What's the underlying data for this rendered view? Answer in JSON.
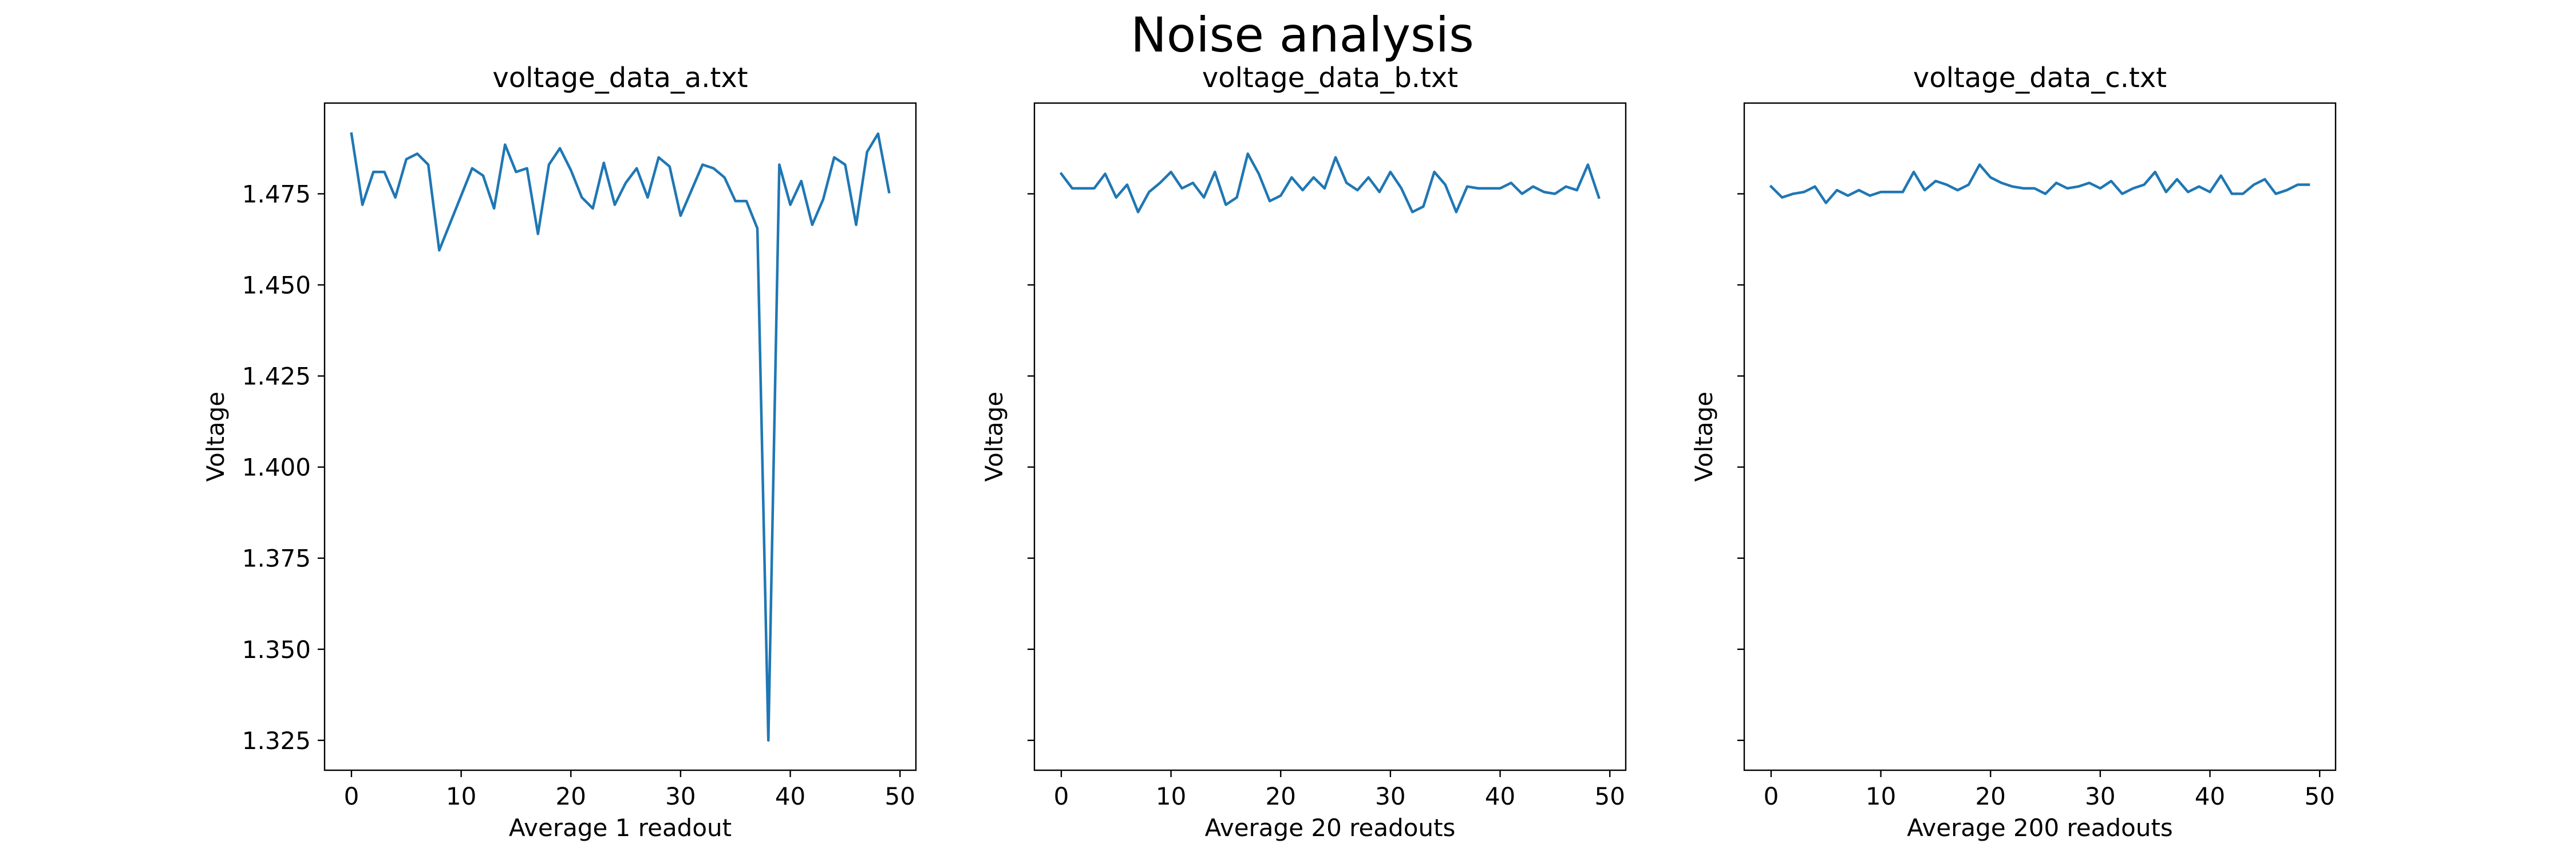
{
  "figure": {
    "suptitle": "Noise analysis"
  },
  "chart_data": [
    {
      "type": "line",
      "title": "voltage_data_a.txt",
      "xlabel": "Average 1 readout",
      "ylabel": "Voltage",
      "xlim": [
        -2.45,
        51.45
      ],
      "ylim": [
        1.3168,
        1.4999
      ],
      "xticks": [
        0,
        10,
        20,
        30,
        40,
        50
      ],
      "yticks": [
        1.325,
        1.35,
        1.375,
        1.4,
        1.425,
        1.45,
        1.475
      ],
      "ytick_labels": [
        "1.325",
        "1.350",
        "1.375",
        "1.400",
        "1.425",
        "1.450",
        "1.475"
      ],
      "show_ytick_labels": true,
      "series": [
        {
          "color": "#1f77b4",
          "x": [
            0,
            1,
            2,
            3,
            4,
            5,
            6,
            7,
            8,
            9,
            10,
            11,
            12,
            13,
            14,
            15,
            16,
            17,
            18,
            19,
            20,
            21,
            22,
            23,
            24,
            25,
            26,
            27,
            28,
            29,
            30,
            31,
            32,
            33,
            34,
            35,
            36,
            37,
            38,
            39,
            40,
            41,
            42,
            43,
            44,
            45,
            46,
            47,
            48,
            49
          ],
          "y": [
            1.4915,
            1.472,
            1.481,
            1.481,
            1.474,
            1.4845,
            1.486,
            1.483,
            1.4595,
            1.467,
            1.4745,
            1.482,
            1.48,
            1.471,
            1.4885,
            1.481,
            1.482,
            1.464,
            1.483,
            1.4875,
            1.4815,
            1.474,
            1.471,
            1.4835,
            1.472,
            1.478,
            1.482,
            1.474,
            1.485,
            1.4825,
            1.469,
            1.476,
            1.483,
            1.482,
            1.4795,
            1.473,
            1.473,
            1.4655,
            1.325,
            1.483,
            1.472,
            1.4785,
            1.4665,
            1.4735,
            1.485,
            1.483,
            1.4665,
            1.4865,
            1.4915,
            1.4755
          ]
        }
      ]
    },
    {
      "type": "line",
      "title": "voltage_data_b.txt",
      "xlabel": "Average 20 readouts",
      "ylabel": "Voltage",
      "xlim": [
        -2.45,
        51.45
      ],
      "ylim": [
        1.3168,
        1.4999
      ],
      "xticks": [
        0,
        10,
        20,
        30,
        40,
        50
      ],
      "yticks": [
        1.325,
        1.35,
        1.375,
        1.4,
        1.425,
        1.45,
        1.475
      ],
      "show_ytick_labels": false,
      "series": [
        {
          "color": "#1f77b4",
          "x": [
            0,
            1,
            2,
            3,
            4,
            5,
            6,
            7,
            8,
            9,
            10,
            11,
            12,
            13,
            14,
            15,
            16,
            17,
            18,
            19,
            20,
            21,
            22,
            23,
            24,
            25,
            26,
            27,
            28,
            29,
            30,
            31,
            32,
            33,
            34,
            35,
            36,
            37,
            38,
            39,
            40,
            41,
            42,
            43,
            44,
            45,
            46,
            47,
            48,
            49
          ],
          "y": [
            1.4805,
            1.4765,
            1.4765,
            1.4765,
            1.4805,
            1.474,
            1.4775,
            1.47,
            1.4755,
            1.478,
            1.481,
            1.4765,
            1.478,
            1.474,
            1.481,
            1.472,
            1.474,
            1.486,
            1.4805,
            1.473,
            1.4745,
            1.4795,
            1.476,
            1.4795,
            1.4765,
            1.485,
            1.478,
            1.476,
            1.4795,
            1.4755,
            1.481,
            1.4765,
            1.47,
            1.4715,
            1.481,
            1.4775,
            1.47,
            1.477,
            1.4765,
            1.4765,
            1.4765,
            1.478,
            1.475,
            1.477,
            1.4755,
            1.475,
            1.477,
            1.476,
            1.483,
            1.474
          ]
        }
      ]
    },
    {
      "type": "line",
      "title": "voltage_data_c.txt",
      "xlabel": "Average 200 readouts",
      "ylabel": "Voltage",
      "xlim": [
        -2.45,
        51.45
      ],
      "ylim": [
        1.3168,
        1.4999
      ],
      "xticks": [
        0,
        10,
        20,
        30,
        40,
        50
      ],
      "yticks": [
        1.325,
        1.35,
        1.375,
        1.4,
        1.425,
        1.45,
        1.475
      ],
      "show_ytick_labels": false,
      "series": [
        {
          "color": "#1f77b4",
          "x": [
            0,
            1,
            2,
            3,
            4,
            5,
            6,
            7,
            8,
            9,
            10,
            11,
            12,
            13,
            14,
            15,
            16,
            17,
            18,
            19,
            20,
            21,
            22,
            23,
            24,
            25,
            26,
            27,
            28,
            29,
            30,
            31,
            32,
            33,
            34,
            35,
            36,
            37,
            38,
            39,
            40,
            41,
            42,
            43,
            44,
            45,
            46,
            47,
            48,
            49
          ],
          "y": [
            1.477,
            1.474,
            1.475,
            1.4755,
            1.477,
            1.4725,
            1.476,
            1.4745,
            1.476,
            1.4745,
            1.4755,
            1.4755,
            1.4755,
            1.481,
            1.476,
            1.4785,
            1.4775,
            1.476,
            1.4775,
            1.483,
            1.4795,
            1.478,
            1.477,
            1.4765,
            1.4765,
            1.475,
            1.478,
            1.4765,
            1.477,
            1.478,
            1.4765,
            1.4785,
            1.475,
            1.4765,
            1.4775,
            1.481,
            1.4755,
            1.479,
            1.4755,
            1.477,
            1.4755,
            1.48,
            1.475,
            1.475,
            1.4775,
            1.479,
            1.475,
            1.476,
            1.4775,
            1.4775
          ]
        }
      ]
    }
  ]
}
